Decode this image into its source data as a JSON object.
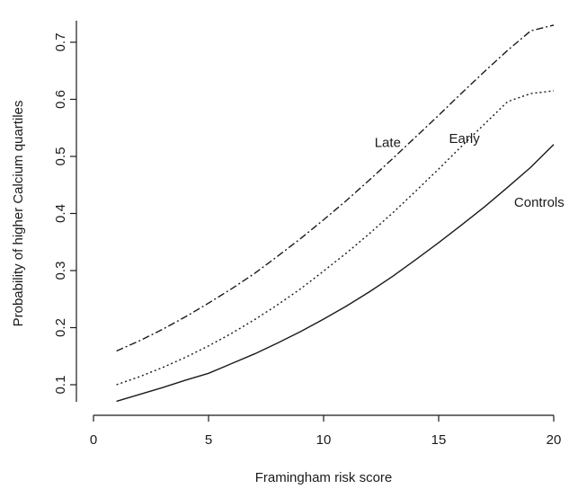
{
  "chart_data": {
    "type": "line",
    "title": "",
    "xlabel": "Framingham risk score",
    "ylabel": "Probability of higher Calcium quartiles",
    "xlim": [
      0,
      20
    ],
    "ylim": [
      0.07,
      0.73
    ],
    "x_ticks": [
      0,
      5,
      10,
      15,
      20
    ],
    "x_tick_labels": [
      "0",
      "5",
      "10",
      "15",
      "20"
    ],
    "y_ticks": [
      0.1,
      0.2,
      0.3,
      0.4,
      0.5,
      0.6,
      0.7
    ],
    "y_tick_labels": [
      "0.1",
      "0.2",
      "0.3",
      "0.4",
      "0.5",
      "0.6",
      "0.7"
    ],
    "grid": false,
    "legend": "none (curves labelled directly)",
    "line_color": "#1a1a1a",
    "x": [
      1,
      2,
      3,
      4,
      5,
      6,
      7,
      8,
      9,
      10,
      11,
      12,
      13,
      14,
      15,
      16,
      17,
      18,
      19,
      20
    ],
    "series": [
      {
        "name": "Late",
        "line_style": "dashdot",
        "values": [
          0.159,
          0.177,
          0.197,
          0.219,
          0.243,
          0.268,
          0.295,
          0.325,
          0.356,
          0.389,
          0.423,
          0.459,
          0.496,
          0.534,
          0.572,
          0.611,
          0.649,
          0.686,
          0.72,
          0.73
        ]
      },
      {
        "name": "Early",
        "line_style": "dotted",
        "values": [
          0.1,
          0.114,
          0.13,
          0.148,
          0.168,
          0.19,
          0.214,
          0.24,
          0.268,
          0.299,
          0.331,
          0.365,
          0.401,
          0.439,
          0.478,
          0.518,
          0.557,
          0.596,
          0.61,
          0.615
        ]
      },
      {
        "name": "Controls",
        "line_style": "solid",
        "values": [
          0.071,
          0.083,
          0.095,
          0.108,
          0.12,
          0.137,
          0.154,
          0.173,
          0.193,
          0.215,
          0.238,
          0.263,
          0.29,
          0.319,
          0.349,
          0.38,
          0.412,
          0.446,
          0.481,
          0.521
        ]
      }
    ],
    "annotations": [
      {
        "text": "Late",
        "series": "Late",
        "x": 13.7
      },
      {
        "text": "Early",
        "series": "Early",
        "x": 16.7
      },
      {
        "text": "Controls",
        "series": "Controls",
        "x": 18.2
      }
    ]
  }
}
